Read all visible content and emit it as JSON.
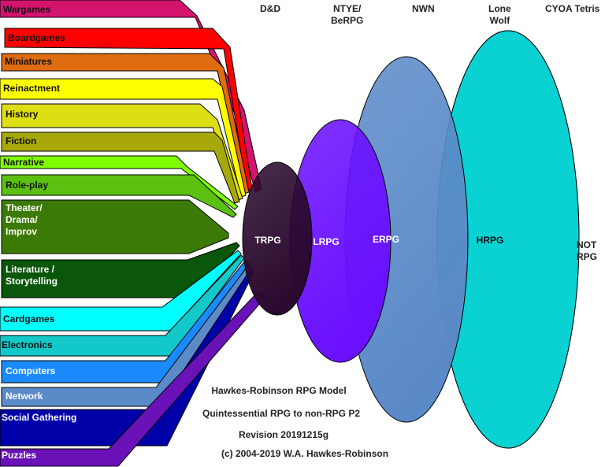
{
  "bands": [
    {
      "id": "wargames",
      "label": "Wargames",
      "color": "#d4136e"
    },
    {
      "id": "boardgames",
      "label": "Boardgames",
      "color": "#ff0000"
    },
    {
      "id": "miniatures",
      "label": "Miniatures",
      "color": "#e06c10"
    },
    {
      "id": "reinactment",
      "label": "Reinactment",
      "color": "#ffff00"
    },
    {
      "id": "history",
      "label": "History",
      "color": "#dede14"
    },
    {
      "id": "fiction",
      "label": "Fiction",
      "color": "#a8a80a"
    },
    {
      "id": "narrative",
      "label": "Narrative",
      "color": "#80ff00"
    },
    {
      "id": "role-play",
      "label": "Role-play",
      "color": "#5cc010"
    },
    {
      "id": "theater",
      "label": "Theater/\nDrama/\nImprov",
      "color": "#3c7a06"
    },
    {
      "id": "literature",
      "label": "Literature /\nStorytelling",
      "color": "#0a560a"
    },
    {
      "id": "cardgames",
      "label": "Cardgames",
      "color": "#00ffff"
    },
    {
      "id": "electronics",
      "label": "Electronics",
      "color": "#12c8c8"
    },
    {
      "id": "computers",
      "label": "Computers",
      "color": "#1a8aff"
    },
    {
      "id": "network",
      "label": "Network",
      "color": "#5b8ac8"
    },
    {
      "id": "social",
      "label": "Social Gathering",
      "color": "#0000a8"
    },
    {
      "id": "puzzles",
      "label": "Puzzles",
      "color": "#6a12b8"
    }
  ],
  "ellipses": [
    {
      "id": "trpg",
      "label": "TRPG",
      "color": "#2a0a2e"
    },
    {
      "id": "lrpg",
      "label": "LRPG",
      "color": "#6a10ff"
    },
    {
      "id": "erpg",
      "label": "ERPG",
      "color": "#5b8ac8"
    },
    {
      "id": "hrpg",
      "label": "HRPG",
      "color": "#0ad2d2"
    }
  ],
  "top_labels": [
    {
      "id": "dnd",
      "text": "D&D"
    },
    {
      "id": "ntye",
      "text": "NTYE/\nBeRPG"
    },
    {
      "id": "nwn",
      "text": "NWN"
    },
    {
      "id": "lonewolf",
      "text": "Lone\nWolf"
    },
    {
      "id": "cyoa",
      "text": "CYOA Tetris"
    }
  ],
  "not_rpg": "NOT\nRPG",
  "caption": {
    "line1": "Hawkes-Robinson RPG Model",
    "line2": "Quintessential RPG to non-RPG P2",
    "line3": "Revision 20191215g",
    "line4": "(c) 2004-2019 W.A. Hawkes-Robinson"
  }
}
